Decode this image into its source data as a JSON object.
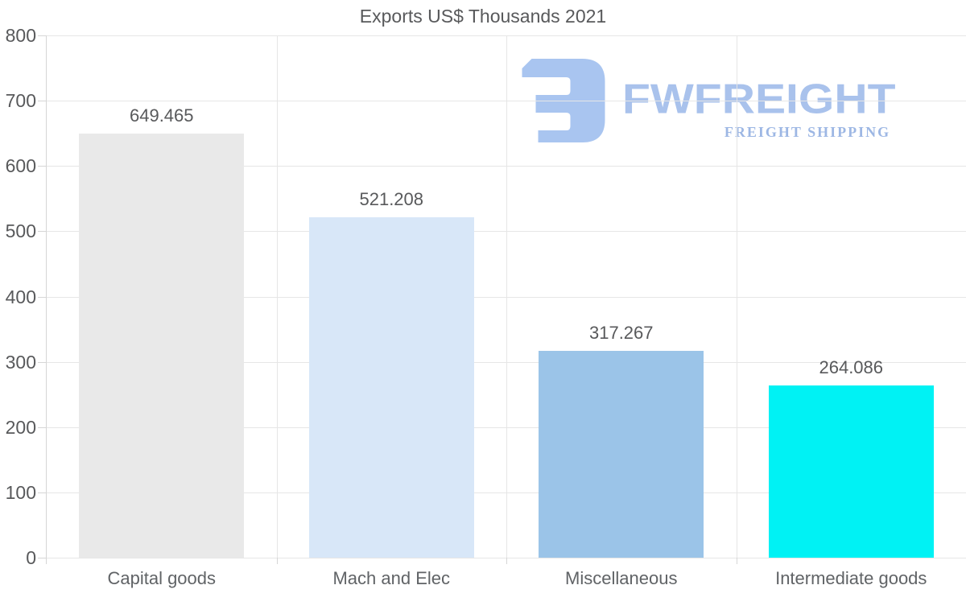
{
  "chart_data": {
    "type": "bar",
    "title": "Exports US$ Thousands 2021",
    "categories": [
      "Capital goods",
      "Mach and Elec",
      "Miscellaneous",
      "Intermediate goods"
    ],
    "values": [
      649.465,
      521.208,
      317.267,
      264.086
    ],
    "value_labels": [
      "649.465",
      "521.208",
      "317.267",
      "264.086"
    ],
    "bar_colors": [
      "#e9e9e9",
      "#d8e7f8",
      "#9bc4e8",
      "#00f2f4"
    ],
    "ylim": [
      0,
      800
    ],
    "ytick_step": 100,
    "ytick_labels": [
      "0",
      "100",
      "200",
      "300",
      "400",
      "500",
      "600",
      "700",
      "800"
    ],
    "xlabel": "",
    "ylabel": "",
    "grid": true,
    "legend_position": "none"
  },
  "watermark": {
    "brand": "FWFREIGHT",
    "tagline": "FREIGHT SHIPPING",
    "logo_icon": "freight-logo-mark",
    "logo_color": "#a9c5f0"
  },
  "colors": {
    "background": "#ffffff",
    "gridline": "#e6e6e6",
    "axis": "#d6d6d6",
    "text": "#58595b"
  }
}
